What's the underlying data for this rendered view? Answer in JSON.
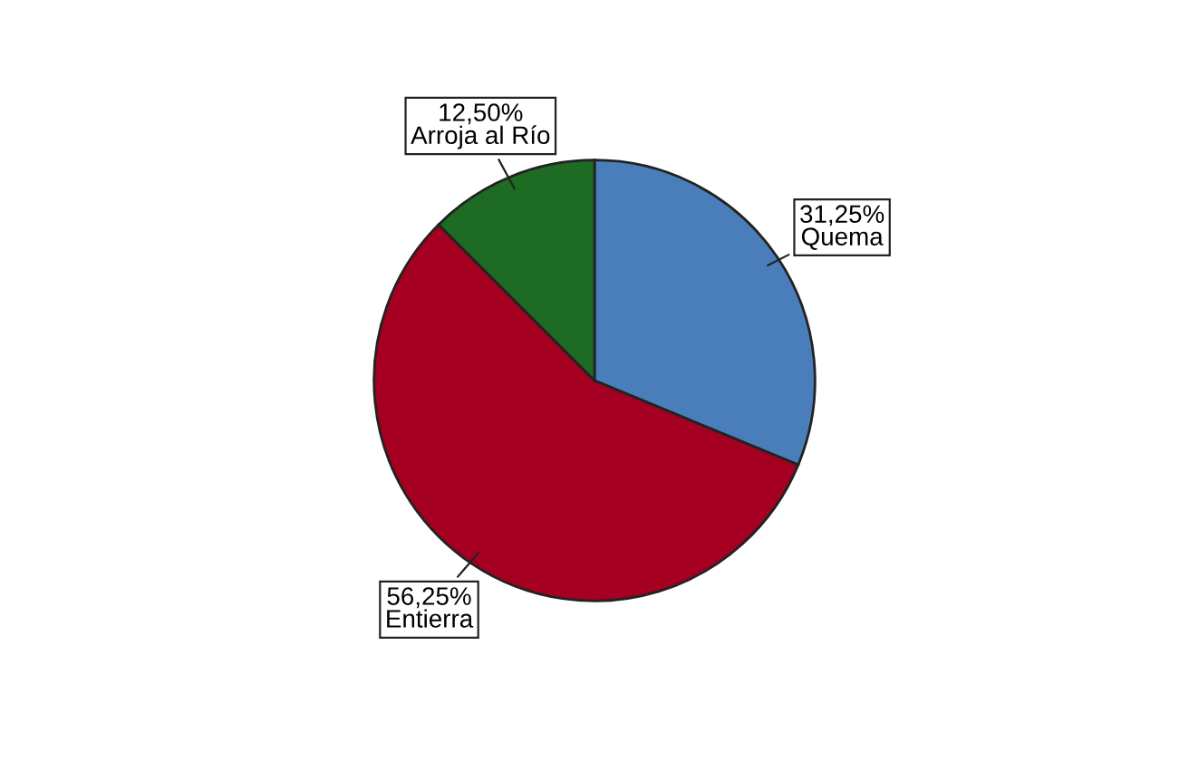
{
  "chart_data": {
    "type": "pie",
    "categories": [
      "Quema",
      "Entierra",
      "Arroja al Río"
    ],
    "values": [
      31.25,
      56.25,
      12.5
    ],
    "colors": [
      "#4a7ebb",
      "#a50021",
      "#1e6b24"
    ],
    "value_labels": [
      "31,25%",
      "56,25%",
      "12,50%"
    ]
  }
}
